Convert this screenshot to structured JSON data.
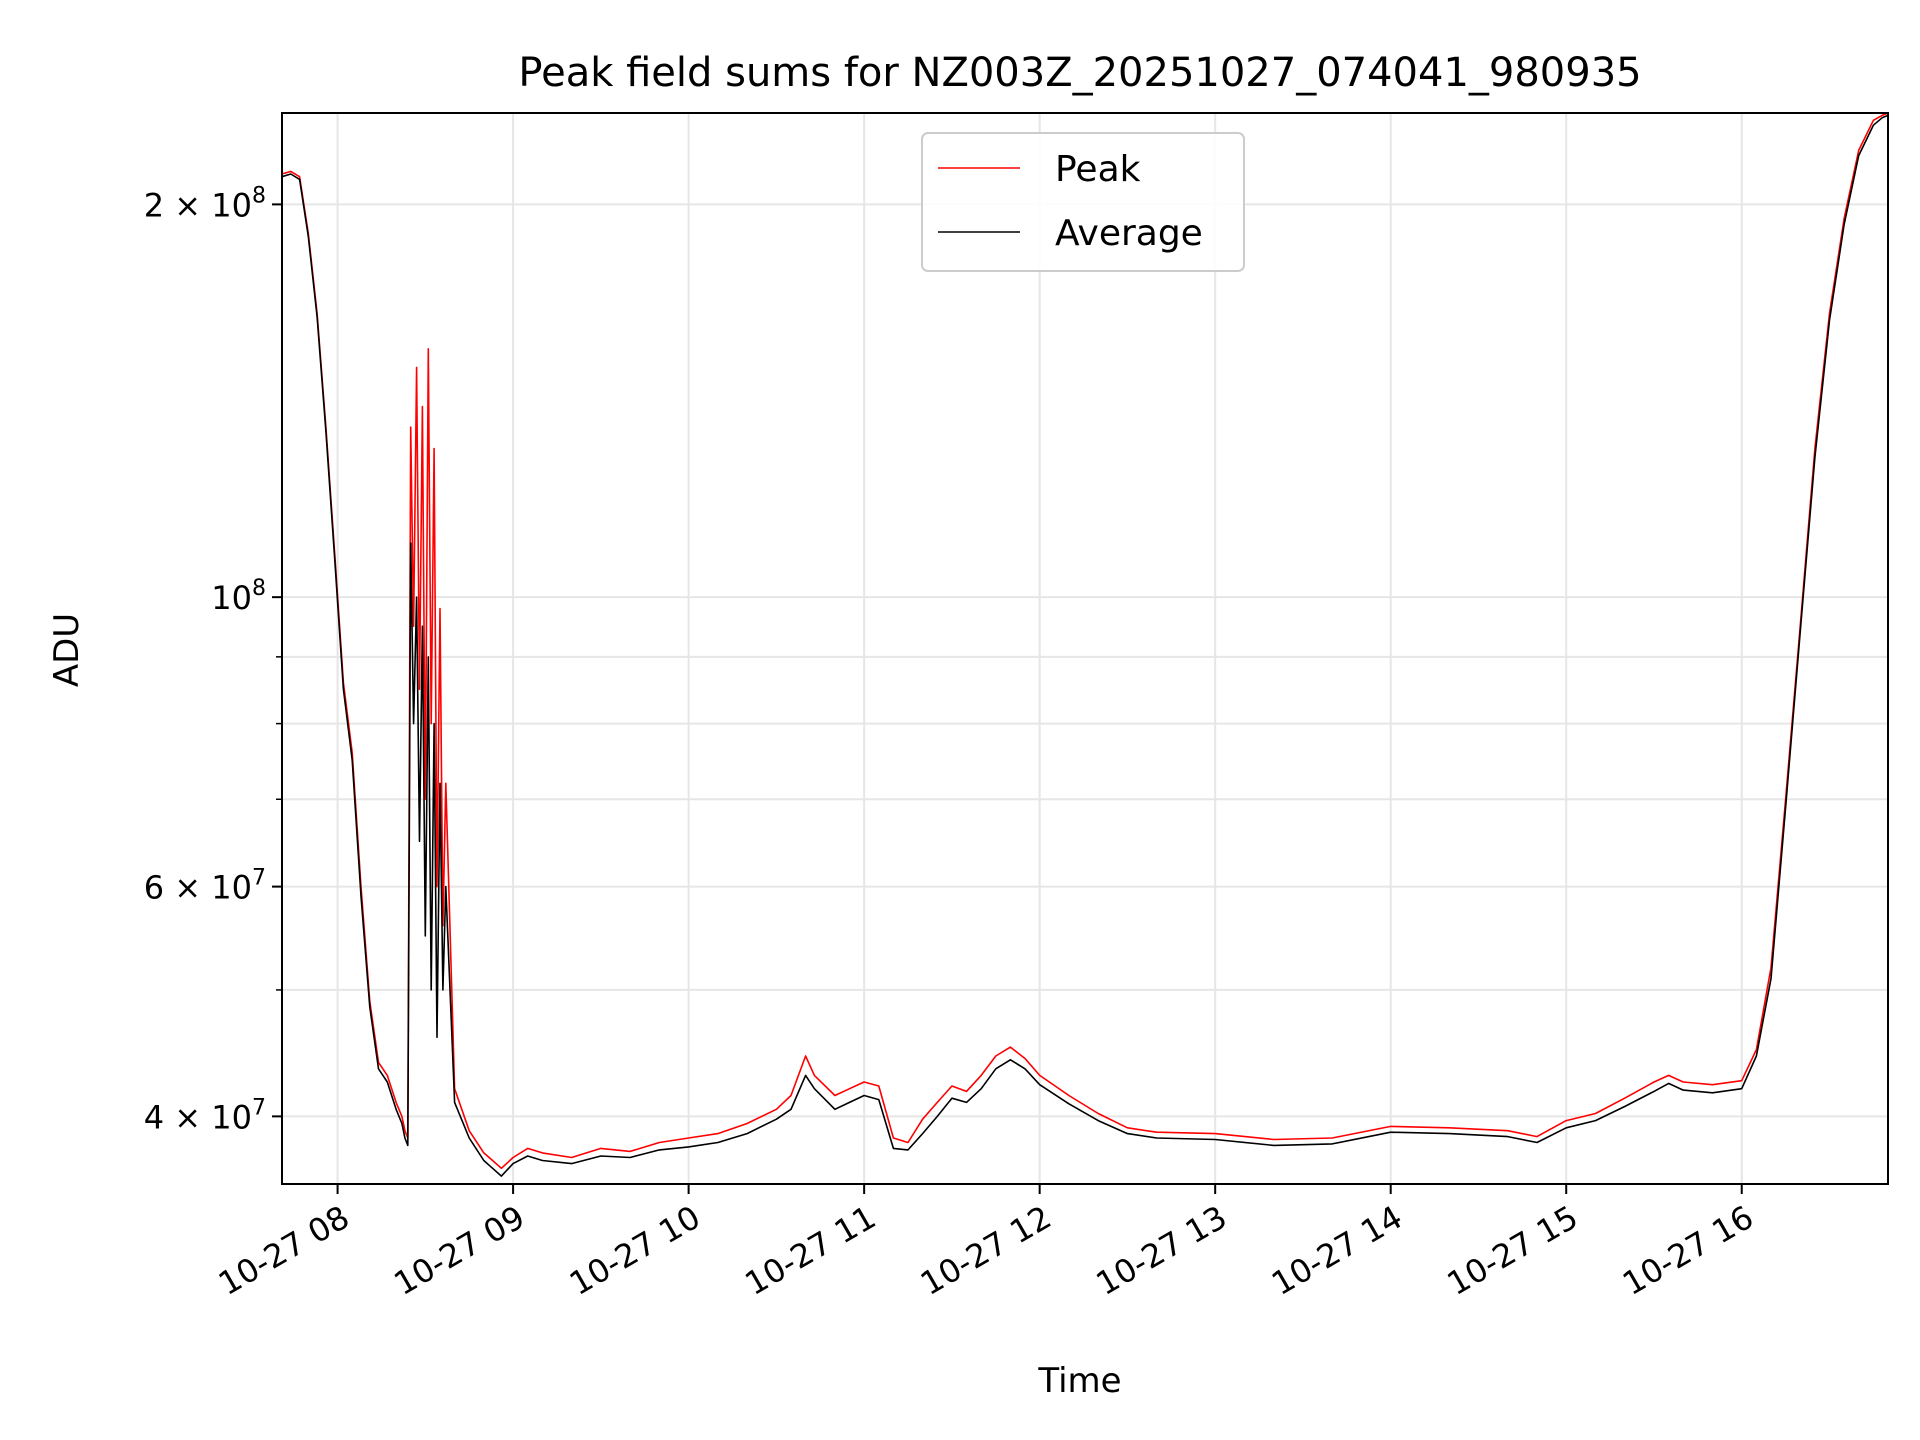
{
  "chart_data": {
    "type": "line",
    "title": "Peak field sums for NZ003Z_20251027_074041_980935",
    "xlabel": "Time",
    "ylabel": "ADU",
    "yscale": "log",
    "grid": true,
    "legend_position": "top-center",
    "xlim": [
      "10-27 07:41",
      "10-27 16:50"
    ],
    "ylim": [
      35500000,
      235000000
    ],
    "xticks": [
      {
        "t": "10-27 08:00",
        "label": "10-27 08"
      },
      {
        "t": "10-27 09:00",
        "label": "10-27 09"
      },
      {
        "t": "10-27 10:00",
        "label": "10-27 10"
      },
      {
        "t": "10-27 11:00",
        "label": "10-27 11"
      },
      {
        "t": "10-27 12:00",
        "label": "10-27 12"
      },
      {
        "t": "10-27 13:00",
        "label": "10-27 13"
      },
      {
        "t": "10-27 14:00",
        "label": "10-27 14"
      },
      {
        "t": "10-27 15:00",
        "label": "10-27 15"
      },
      {
        "t": "10-27 16:00",
        "label": "10-27 16"
      }
    ],
    "yticks_major": [
      {
        "value": 40000000,
        "mantissa": "4",
        "exp": "7"
      },
      {
        "value": 60000000,
        "mantissa": "6",
        "exp": "7"
      },
      {
        "value": 100000000,
        "mantissa": "",
        "exp": "8"
      },
      {
        "value": 200000000,
        "mantissa": "2",
        "exp": "8"
      }
    ],
    "yticks_minor": [
      50000000,
      70000000,
      80000000,
      90000000
    ],
    "series": [
      {
        "name": "Peak",
        "color": "#ff0000",
        "x": [
          "10-27 07:41",
          "10-27 07:44",
          "10-27 07:47",
          "10-27 07:50",
          "10-27 07:53",
          "10-27 07:56",
          "10-27 07:59",
          "10-27 08:02",
          "10-27 08:05",
          "10-27 08:08",
          "10-27 08:11",
          "10-27 08:14",
          "10-27 08:17",
          "10-27 08:20",
          "10-27 08:22",
          "10-27 08:23",
          "10-27 08:24",
          "10-27 08:25",
          "10-27 08:26",
          "10-27 08:27",
          "10-27 08:28",
          "10-27 08:29",
          "10-27 08:30",
          "10-27 08:31",
          "10-27 08:32",
          "10-27 08:33",
          "10-27 08:34",
          "10-27 08:35",
          "10-27 08:36",
          "10-27 08:37",
          "10-27 08:40",
          "10-27 08:45",
          "10-27 08:50",
          "10-27 08:53",
          "10-27 08:56",
          "10-27 09:00",
          "10-27 09:05",
          "10-27 09:10",
          "10-27 09:20",
          "10-27 09:30",
          "10-27 09:40",
          "10-27 09:50",
          "10-27 10:00",
          "10-27 10:10",
          "10-27 10:20",
          "10-27 10:30",
          "10-27 10:35",
          "10-27 10:40",
          "10-27 10:43",
          "10-27 10:50",
          "10-27 10:55",
          "10-27 11:00",
          "10-27 11:05",
          "10-27 11:10",
          "10-27 11:15",
          "10-27 11:20",
          "10-27 11:25",
          "10-27 11:30",
          "10-27 11:35",
          "10-27 11:40",
          "10-27 11:45",
          "10-27 11:50",
          "10-27 11:55",
          "10-27 12:00",
          "10-27 12:10",
          "10-27 12:20",
          "10-27 12:30",
          "10-27 12:40",
          "10-27 13:00",
          "10-27 13:20",
          "10-27 13:40",
          "10-27 14:00",
          "10-27 14:20",
          "10-27 14:40",
          "10-27 14:50",
          "10-27 15:00",
          "10-27 15:10",
          "10-27 15:20",
          "10-27 15:30",
          "10-27 15:35",
          "10-27 15:40",
          "10-27 15:50",
          "10-27 16:00",
          "10-27 16:05",
          "10-27 16:10",
          "10-27 16:15",
          "10-27 16:20",
          "10-27 16:25",
          "10-27 16:30",
          "10-27 16:35",
          "10-27 16:40",
          "10-27 16:45",
          "10-27 16:48",
          "10-27 16:50"
        ],
        "y": [
          211000000,
          212000000,
          210000000,
          190000000,
          165000000,
          135000000,
          108000000,
          86000000,
          76000000,
          60000000,
          49000000,
          44000000,
          43000000,
          41000000,
          40000000,
          39000000,
          38500000,
          135000000,
          95000000,
          150000000,
          85000000,
          140000000,
          70000000,
          155000000,
          80000000,
          130000000,
          60000000,
          98000000,
          56000000,
          72000000,
          42000000,
          39000000,
          37500000,
          37000000,
          36500000,
          37200000,
          37800000,
          37500000,
          37200000,
          37800000,
          37600000,
          38200000,
          38500000,
          38800000,
          39500000,
          40500000,
          41500000,
          44500000,
          43000000,
          41500000,
          42000000,
          42500000,
          42200000,
          38500000,
          38200000,
          39800000,
          41000000,
          42200000,
          41800000,
          43000000,
          44500000,
          45200000,
          44300000,
          43000000,
          41500000,
          40200000,
          39200000,
          38900000,
          38800000,
          38400000,
          38500000,
          39300000,
          39200000,
          39000000,
          38600000,
          39700000,
          40200000,
          41300000,
          42500000,
          43000000,
          42500000,
          42300000,
          42600000,
          45000000,
          52000000,
          70000000,
          95000000,
          130000000,
          165000000,
          195000000,
          220000000,
          232000000,
          234000000,
          235000000
        ]
      },
      {
        "name": "Average",
        "color": "#000000",
        "x": [
          "10-27 07:41",
          "10-27 07:44",
          "10-27 07:47",
          "10-27 07:50",
          "10-27 07:53",
          "10-27 07:56",
          "10-27 07:59",
          "10-27 08:02",
          "10-27 08:05",
          "10-27 08:08",
          "10-27 08:11",
          "10-27 08:14",
          "10-27 08:17",
          "10-27 08:20",
          "10-27 08:22",
          "10-27 08:23",
          "10-27 08:24",
          "10-27 08:25",
          "10-27 08:26",
          "10-27 08:27",
          "10-27 08:28",
          "10-27 08:29",
          "10-27 08:30",
          "10-27 08:31",
          "10-27 08:32",
          "10-27 08:33",
          "10-27 08:34",
          "10-27 08:35",
          "10-27 08:36",
          "10-27 08:37",
          "10-27 08:40",
          "10-27 08:45",
          "10-27 08:50",
          "10-27 08:53",
          "10-27 08:56",
          "10-27 09:00",
          "10-27 09:05",
          "10-27 09:10",
          "10-27 09:20",
          "10-27 09:30",
          "10-27 09:40",
          "10-27 09:50",
          "10-27 10:00",
          "10-27 10:10",
          "10-27 10:20",
          "10-27 10:30",
          "10-27 10:35",
          "10-27 10:40",
          "10-27 10:43",
          "10-27 10:50",
          "10-27 10:55",
          "10-27 11:00",
          "10-27 11:05",
          "10-27 11:10",
          "10-27 11:15",
          "10-27 11:20",
          "10-27 11:25",
          "10-27 11:30",
          "10-27 11:35",
          "10-27 11:40",
          "10-27 11:45",
          "10-27 11:50",
          "10-27 11:55",
          "10-27 12:00",
          "10-27 12:10",
          "10-27 12:20",
          "10-27 12:30",
          "10-27 12:40",
          "10-27 13:00",
          "10-27 13:20",
          "10-27 13:40",
          "10-27 14:00",
          "10-27 14:20",
          "10-27 14:40",
          "10-27 14:50",
          "10-27 15:00",
          "10-27 15:10",
          "10-27 15:20",
          "10-27 15:30",
          "10-27 15:35",
          "10-27 15:40",
          "10-27 15:50",
          "10-27 16:00",
          "10-27 16:05",
          "10-27 16:10",
          "10-27 16:15",
          "10-27 16:20",
          "10-27 16:25",
          "10-27 16:30",
          "10-27 16:35",
          "10-27 16:40",
          "10-27 16:45",
          "10-27 16:48",
          "10-27 16:50"
        ],
        "y": [
          210000000,
          211000000,
          209000000,
          189000000,
          164000000,
          134000000,
          107000000,
          85000000,
          75000000,
          59000000,
          48500000,
          43500000,
          42500000,
          40500000,
          39500000,
          38500000,
          38000000,
          110000000,
          80000000,
          100000000,
          65000000,
          95000000,
          55000000,
          90000000,
          50000000,
          80000000,
          46000000,
          72000000,
          50000000,
          60000000,
          41000000,
          38500000,
          37000000,
          36500000,
          36000000,
          36800000,
          37300000,
          37000000,
          36800000,
          37300000,
          37200000,
          37700000,
          37900000,
          38200000,
          38800000,
          39800000,
          40500000,
          43000000,
          42000000,
          40500000,
          41000000,
          41500000,
          41200000,
          37800000,
          37700000,
          38800000,
          40000000,
          41300000,
          41000000,
          42000000,
          43500000,
          44200000,
          43500000,
          42300000,
          40900000,
          39700000,
          38800000,
          38500000,
          38400000,
          38000000,
          38100000,
          38900000,
          38800000,
          38600000,
          38200000,
          39200000,
          39700000,
          40700000,
          41800000,
          42400000,
          41900000,
          41700000,
          42000000,
          44500000,
          51000000,
          69000000,
          94000000,
          128000000,
          163000000,
          193000000,
          218000000,
          230000000,
          233000000,
          234000000
        ]
      }
    ]
  }
}
